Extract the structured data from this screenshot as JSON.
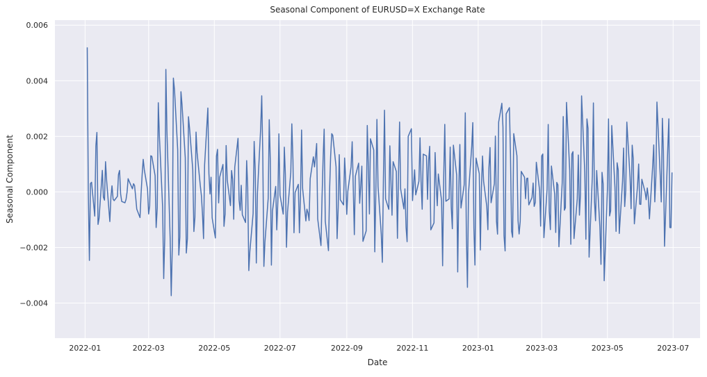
{
  "chart_data": {
    "type": "line",
    "title": "Seasonal Component of EURUSD=X Exchange Rate",
    "xlabel": "Date",
    "ylabel": "Seasonal Component",
    "xlim": [
      "2021-12-04",
      "2023-07-26"
    ],
    "ylim": [
      -0.00526,
      0.00618
    ],
    "xticks": [
      {
        "date": "2022-01-01",
        "label": "2022-01"
      },
      {
        "date": "2022-03-01",
        "label": "2022-03"
      },
      {
        "date": "2022-05-01",
        "label": "2022-05"
      },
      {
        "date": "2022-07-01",
        "label": "2022-07"
      },
      {
        "date": "2022-09-01",
        "label": "2022-09"
      },
      {
        "date": "2022-11-01",
        "label": "2022-11"
      },
      {
        "date": "2023-01-01",
        "label": "2023-01"
      },
      {
        "date": "2023-03-01",
        "label": "2023-03"
      },
      {
        "date": "2023-05-01",
        "label": "2023-05"
      },
      {
        "date": "2023-07-01",
        "label": "2023-07"
      }
    ],
    "yticks": [
      {
        "value": -0.004,
        "label": "−0.004"
      },
      {
        "value": -0.002,
        "label": "−0.002"
      },
      {
        "value": 0.0,
        "label": "0.000"
      },
      {
        "value": 0.002,
        "label": "0.002"
      },
      {
        "value": 0.004,
        "label": "0.004"
      },
      {
        "value": 0.006,
        "label": "0.006"
      }
    ],
    "grid": true,
    "series": [
      {
        "name": "seasonal",
        "start_date": "2022-01-03",
        "end_date": "2023-06-30",
        "pattern_values": [
          0.0052,
          -0.0034,
          0.0012,
          -0.0009,
          0.0033,
          -0.0022,
          0.0008,
          -0.0008,
          0.0015,
          -0.0011,
          0.0004,
          -0.0004,
          -0.0002,
          0.0011,
          -0.0003,
          -0.0004,
          -0.0002,
          0.0006,
          0.0001,
          0.0004,
          -0.0003,
          -0.001,
          0.0004,
          0.0013,
          0.0002,
          -0.0013,
          0.0017,
          0.0008,
          -0.0023,
          0.004,
          -0.0002,
          -0.0045,
          0.0056,
          -0.0014,
          -0.0048,
          0.0052,
          0.0021,
          -0.0042,
          0.0045,
          0.0018,
          -0.0039,
          0.0034,
          0.0012,
          -0.0025,
          0.0026,
          0.0003,
          -0.0003,
          -0.0018,
          0.0035,
          -0.0004,
          0.0006,
          -0.0023,
          0.0026,
          -0.0006,
          0.0015,
          -0.0022,
          0.0019,
          -0.0008,
          0.0013,
          -0.0011,
          0.0025,
          -0.0012,
          0.0003,
          -0.0017,
          0.002,
          -0.003,
          -0.0015,
          0.0028,
          -0.0027,
          0.0019,
          0.0039,
          -0.0028,
          -0.0011,
          0.0036,
          -0.0027,
          0.0007,
          -0.0019,
          0.0021,
          -0.0016,
          0.0024,
          -0.002,
          0.0001,
          0.003,
          -0.0015,
          0.0009,
          -0.002,
          0.0023,
          -0.0012,
          -0.0005,
          -0.0011,
          0.0014,
          0.0008,
          0.0019,
          -0.0026,
          0.0002,
          0.0025,
          -0.003,
          0.0006,
          0.0021,
          0.002,
          -0.0023,
          0.0015,
          -0.0012,
          0.0016,
          -0.0009,
          0.0005,
          0.002,
          -0.0018,
          0.0017,
          -0.0007,
          0.0013,
          -0.0032,
          0.0031,
          -0.0012,
          0.0033,
          -0.0028,
          0.003,
          -0.001,
          -0.0027,
          0.0035,
          -0.0018,
          0.002,
          -0.0012,
          0.002,
          -0.002,
          0.003,
          -0.001,
          0.0002,
          -0.0026,
          0.0037,
          -0.0006,
          0.001,
          -0.0005,
          0.0021,
          -0.0011,
          0.0022,
          -0.0004,
          0.0024,
          -0.0026,
          0.0016,
          -0.0008,
          0.0011,
          -0.0028,
          0.0032,
          -0.0014,
          0.0017,
          -0.0022,
          0.0028,
          -0.003,
          0.0024,
          -0.0014,
          0.0029,
          -0.0045,
          0.0011,
          0.0025,
          -0.0039,
          0.0025,
          -0.0021,
          0.0016,
          0.0001,
          -0.0014,
          0.0023,
          -0.001,
          0.0021,
          -0.003,
          0.0037,
          0.0025,
          -0.004,
          0.0042,
          0.0015,
          -0.0031,
          0.0031,
          -0.001,
          -0.0018,
          0.0012,
          -0.0003,
          0.0009,
          -0.0007,
          0.0004,
          -0.001,
          0.0014,
          -0.0015,
          0.0027,
          -0.0023,
          0.0028,
          -0.0024,
          0.0014,
          -0.0017,
          0.0013,
          -0.0024,
          0.0032,
          -0.0024,
          0.0039,
          -0.0024,
          0.003,
          -0.0022,
          0.0017,
          -0.0019,
          0.004,
          -0.0025,
          0.0047,
          -0.003,
          0.0039,
          -0.002,
          0.001,
          -0.0033,
          0.0022,
          -0.0036,
          0.0034,
          -0.0024,
          0.0027,
          -0.002,
          0.0021,
          -0.0017,
          0.0021,
          -0.0014,
          0.0027,
          -0.0012,
          0.0026,
          -0.0013,
          0.0014,
          -0.001,
          0.0005,
          -0.0004,
          0.0003,
          -0.001,
          0.0023,
          -0.0011,
          0.0033,
          -0.0013,
          0.0037,
          -0.002,
          0.0039,
          -0.0026,
          0.0007
        ]
      }
    ]
  }
}
